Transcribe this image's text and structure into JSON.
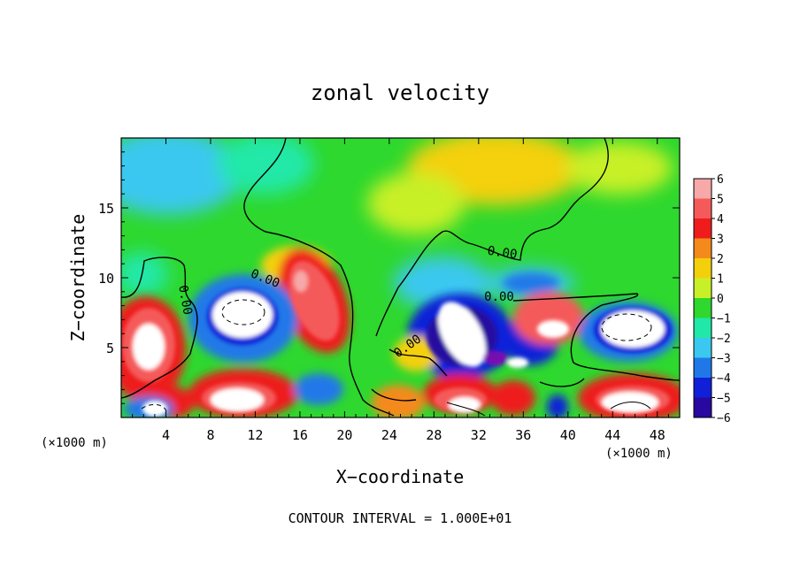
{
  "chart_data": {
    "type": "heatmap",
    "title": "zonal velocity",
    "xlabel": "X−coordinate",
    "ylabel": "Z−coordinate",
    "x_unit_left": "(×1000 m)",
    "x_unit_right": "(×1000 m)",
    "xlim": [
      0,
      50
    ],
    "ylim": [
      0,
      20
    ],
    "x_ticks": [
      4,
      8,
      12,
      16,
      20,
      24,
      28,
      32,
      36,
      40,
      44,
      48
    ],
    "y_ticks": [
      5,
      10,
      15
    ],
    "colorbar": {
      "levels": [
        6,
        5,
        4,
        3,
        2,
        1,
        0,
        -1,
        -2,
        -3,
        -4,
        -5,
        -6
      ],
      "labels": [
        "6",
        "5",
        "4",
        "3",
        "2",
        "1",
        "0",
        "−1",
        "−2",
        "−3",
        "−4",
        "−5",
        "−6"
      ],
      "colors": [
        "#f7a8a8",
        "#f55a5a",
        "#ee1c1c",
        "#f48a1c",
        "#f4d00c",
        "#c8f028",
        "#2ed82e",
        "#20e8a8",
        "#3ac8f0",
        "#2078e8",
        "#1020d8",
        "#2808a0",
        "#7a10b0"
      ]
    },
    "contour_labels": [
      "0.00",
      "0.00",
      "0.00",
      "0.00",
      "0.00"
    ],
    "footer": "CONTOUR INTERVAL = 1.000E+01"
  }
}
